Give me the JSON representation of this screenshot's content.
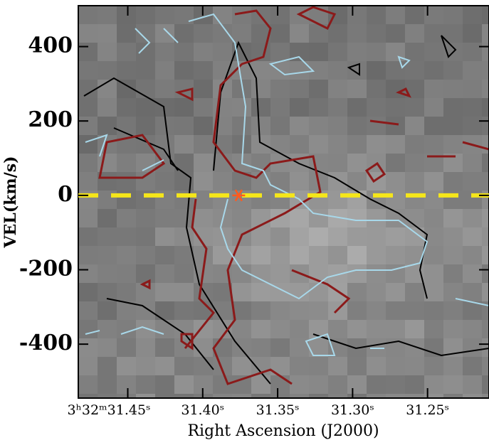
{
  "chart_data": {
    "type": "image",
    "xlabel": "Right Ascension (J2000)",
    "ylabel": "VEL(km/s)",
    "xlim": [
      31.483,
      31.209
    ],
    "ylim": [
      -545,
      510
    ],
    "xticks": [
      {
        "value": 31.45,
        "label": "3ʰ32ᵐ31.45ˢ"
      },
      {
        "value": 31.4,
        "label": "31.40ˢ"
      },
      {
        "value": 31.35,
        "label": "31.35ˢ"
      },
      {
        "value": 31.3,
        "label": "31.30ˢ"
      },
      {
        "value": 31.25,
        "label": "31.25ˢ"
      }
    ],
    "yticks": [
      -400,
      -200,
      0,
      200,
      400
    ],
    "reference_line": 0,
    "reference_color": "#f5e61a",
    "marker": {
      "x": 31.376,
      "y": 0,
      "color": "#ff5a1f"
    }
  }
}
